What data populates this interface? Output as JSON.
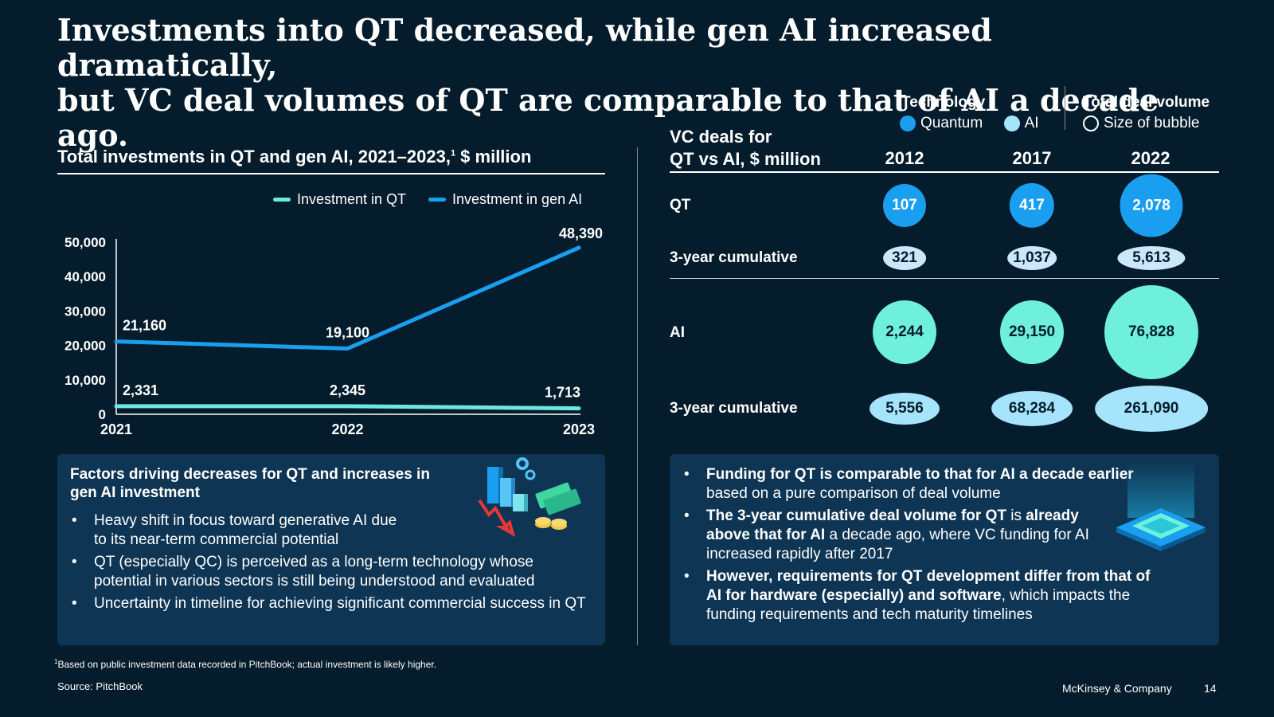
{
  "title": {
    "line1": "Investments into QT decreased, while gen AI increased dramatically,",
    "line2": "but VC deal volumes of QT are comparable to that of AI a decade ago."
  },
  "left_chart": {
    "heading": "Total investments in QT and gen AI, 2021–2023,",
    "heading_sup": "1",
    "heading_suffix": " $ million"
  },
  "colors": {
    "qt_line": "#6fe6de",
    "ai_line": "#1a9ff0",
    "quantum_bubble": "#1a9ff0",
    "ai_bubble": "#6ff0dc",
    "ai_cum_bubble": "#a6e4fb",
    "qt_cum_bubble": "#cbe8fb",
    "background": "#051c2c",
    "panel": "#0e3553"
  },
  "chart_data": [
    {
      "type": "line",
      "x": [
        "2021",
        "2022",
        "2023"
      ],
      "series": [
        {
          "name": "Investment in QT",
          "values": [
            2331,
            2345,
            1713
          ],
          "labels": [
            "2,331",
            "2,345",
            "1,713"
          ]
        },
        {
          "name": "Investment in gen AI",
          "values": [
            21160,
            19100,
            48390
          ],
          "labels": [
            "21,160",
            "19,100",
            "48,390"
          ]
        }
      ],
      "yticks": [
        0,
        10000,
        20000,
        30000,
        40000,
        50000
      ],
      "ytick_labels": [
        "0",
        "10,000",
        "20,000",
        "30,000",
        "40,000",
        "50,000"
      ],
      "ylim": [
        0,
        50000
      ],
      "legend": "top-right"
    },
    {
      "type": "bubble",
      "title": "VC deals for QT vs AI, $ million",
      "columns": [
        "2012",
        "2017",
        "2022"
      ],
      "rows": [
        {
          "label": "QT",
          "values": [
            107,
            417,
            2078
          ],
          "labels": [
            "107",
            "417",
            "2,078"
          ]
        },
        {
          "label": "3-year cumulative",
          "values": [
            321,
            1037,
            5613
          ],
          "labels": [
            "321",
            "1,037",
            "5,613"
          ]
        },
        {
          "label": "AI",
          "values": [
            2244,
            29150,
            76828
          ],
          "labels": [
            "2,244",
            "29,150",
            "76,828"
          ]
        },
        {
          "label": "3-year cumulative",
          "values": [
            5556,
            68284,
            261090
          ],
          "labels": [
            "5,556",
            "68,284",
            "261,090"
          ]
        }
      ]
    }
  ],
  "right_chart": {
    "heading_line1": "VC deals for",
    "heading_line2": "QT vs AI, $ million",
    "legend_tech_title": "Technology",
    "legend_quantum": "Quantum",
    "legend_ai": "AI",
    "legend_volume_title": "Total deal volume",
    "legend_volume_item": "Size of bubble"
  },
  "left_panel": {
    "heading": "Factors driving decreases for QT and increases in gen AI investment",
    "bullets": [
      "Heavy shift in focus toward generative AI due to its near-term commercial potential",
      "QT (especially QC) is perceived as a long-term technology whose potential in various sectors is still being understood and evaluated",
      "Uncertainty in timeline for achieving significant commercial success in QT"
    ]
  },
  "right_panel": {
    "b1_bold": "Funding for QT is comparable to that for AI a decade earlier",
    "b1_rest": " based on a pure comparison of deal volume",
    "b2_bold1": "The 3-year cumulative deal volume for QT",
    "b2_mid": " is ",
    "b2_bold2": "already above that for AI",
    "b2_rest": " a decade ago, where VC funding for AI increased rapidly after 2017",
    "b3_bold": "However, requirements for QT development differ from that of AI for hardware (especially) and software",
    "b3_rest": ", which impacts the funding requirements and tech maturity timelines"
  },
  "footnote": {
    "sup": "1",
    "text": "Based on public investment data recorded in PitchBook; actual investment is likely higher."
  },
  "source": "Source: PitchBook",
  "brand": "McKinsey & Company",
  "page_number": "14"
}
